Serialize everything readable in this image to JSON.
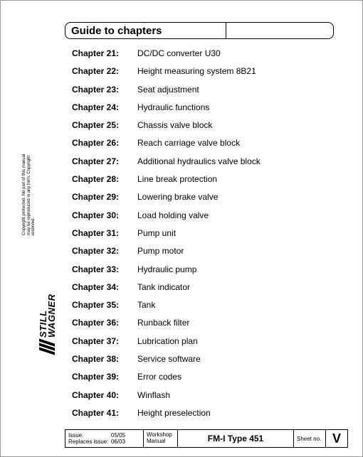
{
  "header": {
    "title": "Guide to chapters"
  },
  "chapters": [
    {
      "label": "Chapter 21:",
      "desc": "DC/DC converter U30"
    },
    {
      "label": "Chapter 22:",
      "desc": "Height measuring system 8B21"
    },
    {
      "label": "Chapter 23:",
      "desc": "Seat adjustment"
    },
    {
      "label": "Chapter 24:",
      "desc": "Hydraulic functions"
    },
    {
      "label": "Chapter 25:",
      "desc": "Chassis valve block"
    },
    {
      "label": "Chapter 26:",
      "desc": "Reach carriage valve block"
    },
    {
      "label": "Chapter 27:",
      "desc": "Additional hydraulics valve block"
    },
    {
      "label": "Chapter 28:",
      "desc": "Line break protection"
    },
    {
      "label": "Chapter 29:",
      "desc": "Lowering brake valve"
    },
    {
      "label": "Chapter 30:",
      "desc": "Load holding valve"
    },
    {
      "label": "Chapter 31:",
      "desc": "Pump unit"
    },
    {
      "label": "Chapter 32:",
      "desc": "Pump motor"
    },
    {
      "label": "Chapter 33:",
      "desc": "Hydraulic pump"
    },
    {
      "label": "Chapter 34:",
      "desc": "Tank indicator"
    },
    {
      "label": "Chapter 35:",
      "desc": "Tank"
    },
    {
      "label": "Chapter 36:",
      "desc": "Runback filter"
    },
    {
      "label": "Chapter 37:",
      "desc": "Lubrication plan"
    },
    {
      "label": "Chapter 38:",
      "desc": "Service software"
    },
    {
      "label": "Chapter 39:",
      "desc": "Error codes"
    },
    {
      "label": "Chapter 40:",
      "desc": "Winflash"
    },
    {
      "label": "Chapter 41:",
      "desc": "Height preselection"
    }
  ],
  "copyright": {
    "line1": "Copyright protected. No part of this manual",
    "line2": "may be reproduced in any form. Copyright",
    "line3": "reserved."
  },
  "logo": {
    "line1": "STILL",
    "line2": "WAGNER"
  },
  "footer": {
    "issue_label": "Issue:",
    "issue_value": "05/05",
    "replaces_label": "Replaces issue:",
    "replaces_value": "06/03",
    "workshop_line1": "Workshop",
    "workshop_line2": "Manual",
    "type": "FM-I Type 451",
    "sheet_label": "Sheet no.",
    "page_roman": "V"
  }
}
